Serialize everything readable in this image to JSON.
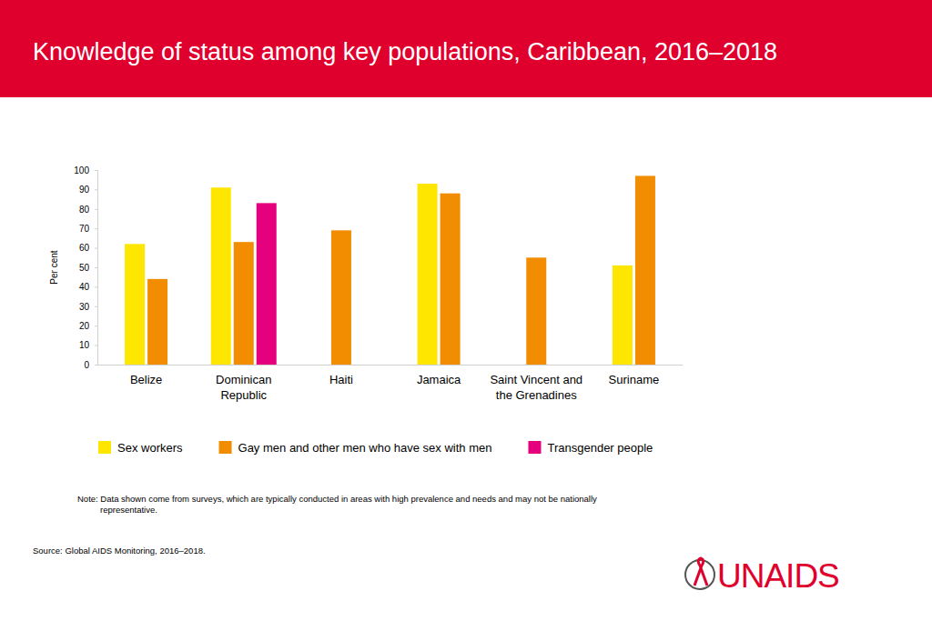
{
  "chart_data": {
    "type": "bar",
    "title": "Knowledge of status among key populations, Caribbean, 2016–2018",
    "y_label": "Per cent",
    "categories": [
      "Belize",
      "Dominican Republic",
      "Haiti",
      "Jamaica",
      "Saint Vincent and the Grenadines",
      "Suriname"
    ],
    "series": [
      {
        "name": "Sex workers",
        "color": "#ffe600",
        "values": [
          62,
          91,
          null,
          93,
          null,
          51
        ]
      },
      {
        "name": "Gay men and other men who have sex with men",
        "color": "#f28c00",
        "values": [
          44,
          63,
          69,
          88,
          55,
          97
        ]
      },
      {
        "name": "Transgender people",
        "color": "#e5007e",
        "values": [
          null,
          83,
          null,
          null,
          null,
          null
        ]
      }
    ],
    "ylim": [
      0,
      100
    ],
    "yticks": [
      0,
      10,
      20,
      30,
      40,
      50,
      60,
      70,
      80,
      90,
      100
    ],
    "grid": false,
    "legend": "bottom",
    "note": "Note: Data shown come from surveys, which are typically conducted in areas with high prevalence and needs and may not be nationally representative.",
    "source": "Source: Global AIDS Monitoring, 2016–2018.",
    "logo": "UNAIDS"
  }
}
